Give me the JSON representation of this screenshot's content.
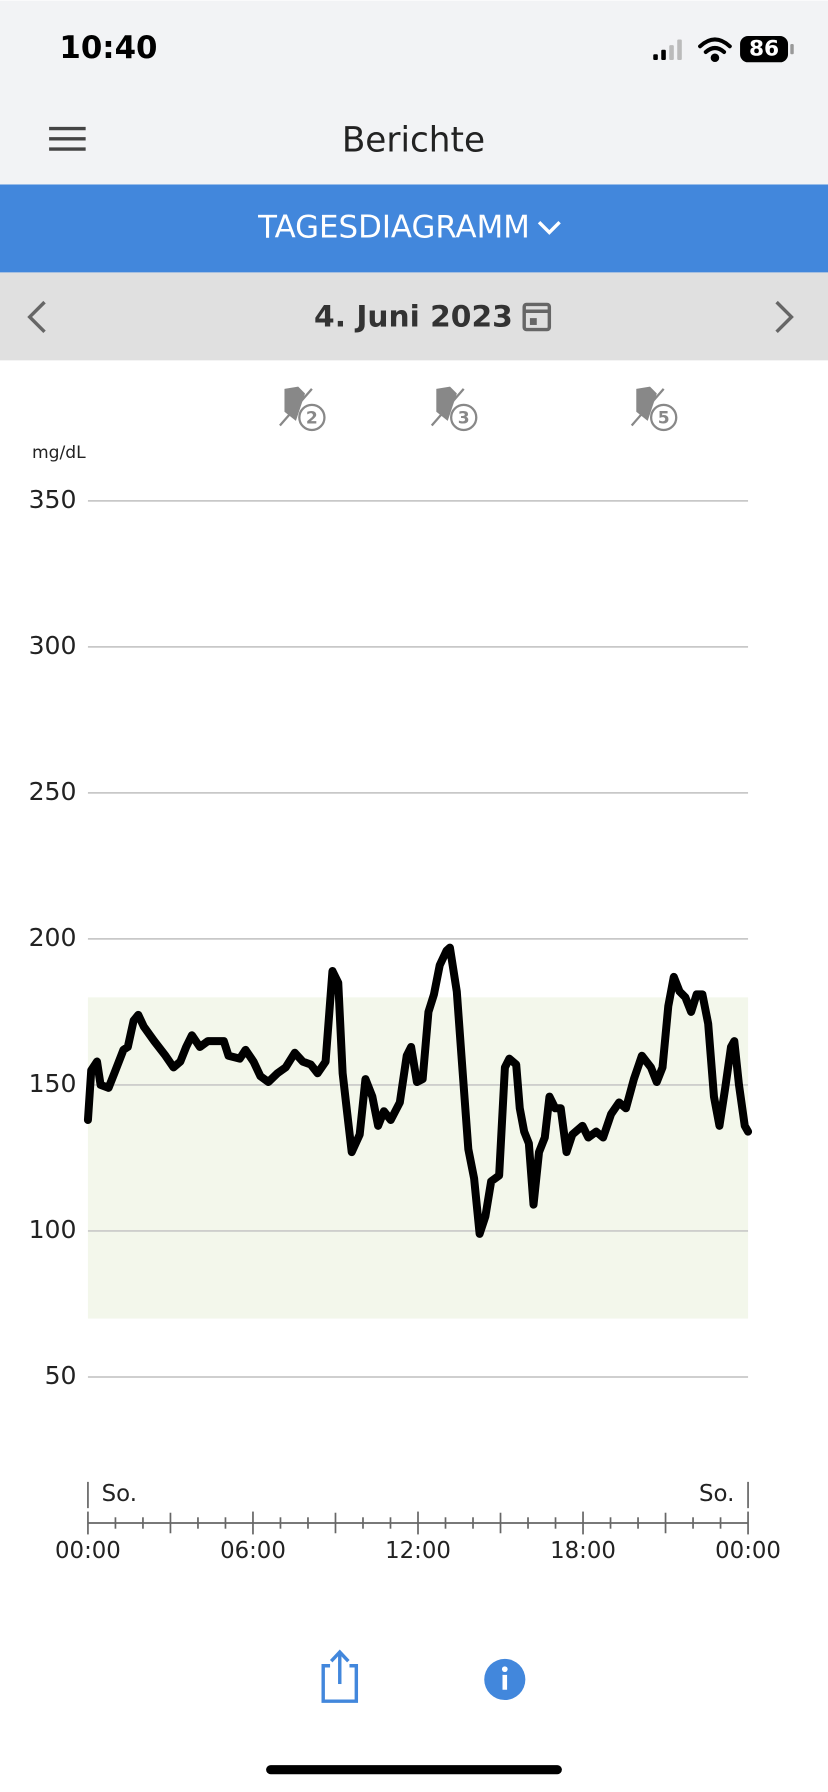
{
  "status_bar": {
    "time": "10:40",
    "battery": "86"
  },
  "header": {
    "title": "Berichte"
  },
  "tab": {
    "label": "TAGESDIAGRAMM"
  },
  "date_nav": {
    "date": "4. Juni 2023"
  },
  "chart_data": {
    "type": "line",
    "y_unit_label": "mg/dL",
    "x": [
      0,
      0.12,
      0.33,
      0.46,
      0.75,
      0.96,
      1.29,
      1.45,
      1.66,
      1.83,
      2.03,
      2.41,
      2.82,
      3.11,
      3.36,
      3.57,
      3.78,
      4.07,
      4.36,
      4.69,
      4.94,
      5.11,
      5.52,
      5.73,
      6.02,
      6.27,
      6.56,
      6.89,
      7.19,
      7.52,
      7.81,
      8.1,
      8.35,
      8.64,
      8.89,
      9.1,
      9.26,
      9.43,
      9.59,
      9.88,
      10.09,
      10.34,
      10.55,
      10.76,
      11.01,
      11.34,
      11.59,
      11.75,
      11.96,
      12.17,
      12.38,
      12.58,
      12.79,
      13.04,
      13.16,
      13.41,
      13.58,
      13.83,
      14.04,
      14.24,
      14.45,
      14.66,
      14.95,
      15.16,
      15.32,
      15.57,
      15.7,
      15.86,
      16.03,
      16.2,
      16.4,
      16.61,
      16.78,
      16.99,
      17.19,
      17.4,
      17.61,
      17.98,
      18.19,
      18.48,
      18.73,
      19.02,
      19.31,
      19.56,
      19.85,
      20.14,
      20.47,
      20.68,
      20.89,
      21.1,
      21.3,
      21.51,
      21.72,
      21.93,
      22.13,
      22.34,
      22.55,
      22.76,
      22.96,
      23.17,
      23.38,
      23.5,
      23.67,
      23.88,
      24.0
    ],
    "series": [
      {
        "color": "#000000",
        "values": [
          138,
          155,
          158,
          150,
          149,
          154,
          162,
          163,
          172,
          174,
          170,
          165,
          160,
          156,
          158,
          163,
          167,
          163,
          165,
          165,
          165,
          160,
          159,
          162,
          158,
          153,
          151,
          154,
          156,
          161,
          158,
          157,
          154,
          158,
          189,
          185,
          154,
          140,
          127,
          133,
          152,
          146,
          136,
          141,
          138,
          144,
          160,
          163,
          151,
          152,
          175,
          181,
          191,
          196,
          197,
          182,
          160,
          128,
          118,
          99,
          105,
          117,
          119,
          156,
          159,
          157,
          142,
          134,
          130,
          109,
          127,
          132,
          146,
          142,
          142,
          127,
          133,
          136,
          132,
          134,
          132,
          140,
          144,
          142,
          152,
          160,
          156,
          151,
          156,
          177,
          187,
          182,
          180,
          175,
          181,
          181,
          171,
          146,
          136,
          149,
          163,
          165,
          150,
          136,
          134
        ]
      }
    ],
    "xlim": [
      0,
      24
    ],
    "xticks": [
      {
        "value": 0,
        "label": "00:00"
      },
      {
        "value": 6,
        "label": "06:00"
      },
      {
        "value": 12,
        "label": "12:00"
      },
      {
        "value": 18,
        "label": "18:00"
      },
      {
        "value": 24,
        "label": "00:00"
      }
    ],
    "xticks_minor": [
      1,
      2,
      3,
      4,
      5,
      7,
      8,
      9,
      10,
      11,
      13,
      14,
      15,
      16,
      17,
      19,
      20,
      21,
      22,
      23
    ],
    "ylim": [
      0,
      350
    ],
    "yticks": [
      50,
      100,
      150,
      200,
      250,
      300,
      350
    ],
    "grid": true,
    "target_range": [
      70,
      180
    ],
    "target_color": "#f3f7eb",
    "day_labels": [
      "So.",
      "So."
    ],
    "events": [
      {
        "x": 7.81,
        "label": "2"
      },
      {
        "x": 13.33,
        "label": "3"
      },
      {
        "x": 20.6,
        "label": "5"
      }
    ]
  }
}
